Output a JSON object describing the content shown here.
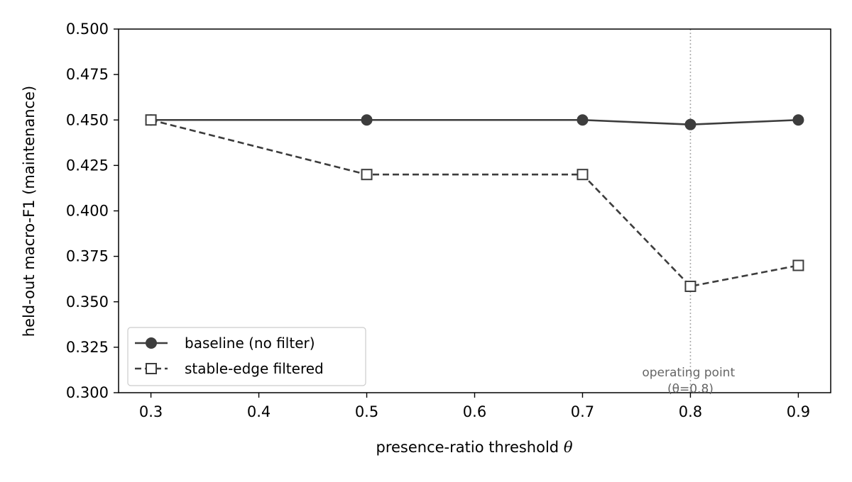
{
  "chart_data": {
    "type": "line",
    "xlabel": "presence-ratio threshold",
    "xlabel_symbol": "θ",
    "ylabel": "held-out macro-F1 (maintenance)",
    "xlim": [
      0.27,
      0.93
    ],
    "ylim": [
      0.3,
      0.5
    ],
    "x_ticks": [
      0.3,
      0.4,
      0.5,
      0.6,
      0.7,
      0.8,
      0.9
    ],
    "x_tick_labels": [
      "0.3",
      "0.4",
      "0.5",
      "0.6",
      "0.7",
      "0.8",
      "0.9"
    ],
    "y_ticks": [
      0.3,
      0.325,
      0.35,
      0.375,
      0.4,
      0.425,
      0.45,
      0.475,
      0.5
    ],
    "y_tick_labels": [
      "0.300",
      "0.325",
      "0.350",
      "0.375",
      "0.400",
      "0.425",
      "0.450",
      "0.475",
      "0.500"
    ],
    "grid": false,
    "legend_position": "lower-left",
    "series": [
      {
        "name": "baseline (no filter)",
        "x": [
          0.3,
          0.5,
          0.7,
          0.8,
          0.9
        ],
        "y": [
          0.45,
          0.45,
          0.45,
          0.4475,
          0.45
        ],
        "line_style": "solid",
        "marker": "circle-filled",
        "color": "#3d3d3d"
      },
      {
        "name": "stable-edge filtered",
        "x": [
          0.3,
          0.5,
          0.7,
          0.8,
          0.9
        ],
        "y": [
          0.45,
          0.42,
          0.42,
          0.3585,
          0.37
        ],
        "line_style": "dashed",
        "marker": "square-open",
        "color": "#3d3d3d"
      }
    ],
    "reference_line": {
      "x": 0.8,
      "style": "dotted",
      "color": "#aaaaaa"
    },
    "annotation": {
      "line1": "operating point",
      "line2": "(θ=0.8)",
      "x": 0.8,
      "color": "#666666"
    }
  }
}
